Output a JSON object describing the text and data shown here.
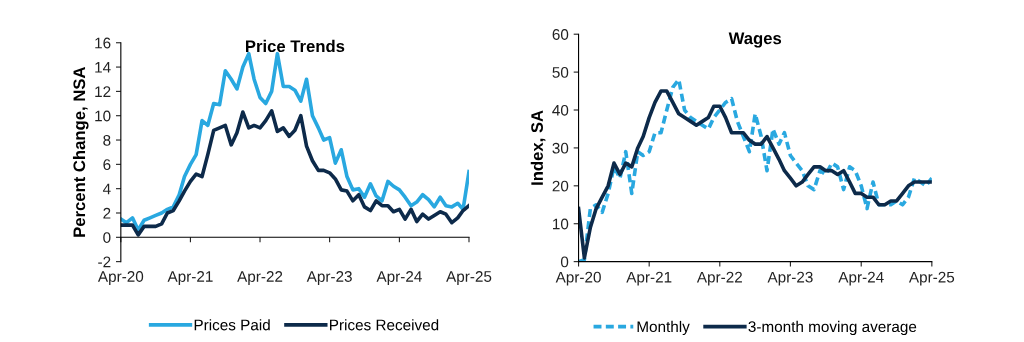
{
  "chart_data": [
    {
      "type": "line",
      "title": "Price Trends",
      "ylabel": "Percent Change, NSA",
      "x": [
        "2020-04",
        "2020-05",
        "2020-06",
        "2020-07",
        "2020-08",
        "2020-09",
        "2020-10",
        "2020-11",
        "2020-12",
        "2021-01",
        "2021-02",
        "2021-03",
        "2021-04",
        "2021-05",
        "2021-06",
        "2021-07",
        "2021-08",
        "2021-09",
        "2021-10",
        "2021-11",
        "2021-12",
        "2022-01",
        "2022-02",
        "2022-03",
        "2022-04",
        "2022-05",
        "2022-06",
        "2022-07",
        "2022-08",
        "2022-09",
        "2022-10",
        "2022-11",
        "2022-12",
        "2023-01",
        "2023-02",
        "2023-03",
        "2023-04",
        "2023-05",
        "2023-06",
        "2023-07",
        "2023-08",
        "2023-09",
        "2023-10",
        "2023-11",
        "2023-12",
        "2024-01",
        "2024-02",
        "2024-03",
        "2024-04",
        "2024-05",
        "2024-06",
        "2024-07",
        "2024-08",
        "2024-09",
        "2024-10",
        "2024-11",
        "2024-12",
        "2025-01",
        "2025-02",
        "2025-03",
        "2025-04"
      ],
      "xlim": [
        "2020-04",
        "2025-04"
      ],
      "xticks": [
        {
          "value": "2020-04",
          "label": "Apr-20"
        },
        {
          "value": "2021-04",
          "label": "Apr-21"
        },
        {
          "value": "2022-04",
          "label": "Apr-22"
        },
        {
          "value": "2023-04",
          "label": "Apr-23"
        },
        {
          "value": "2024-04",
          "label": "Apr-24"
        },
        {
          "value": "2025-04",
          "label": "Apr-25"
        }
      ],
      "ylim": [
        -2,
        16
      ],
      "yticks": [
        -2,
        0,
        2,
        4,
        6,
        8,
        10,
        12,
        14,
        16
      ],
      "grid": false,
      "legend": "bottom",
      "series": [
        {
          "name": "Prices Paid",
          "color": "#29a8e0",
          "line_style": "solid",
          "values": [
            1.5,
            1.2,
            1.6,
            0.6,
            1.4,
            1.6,
            1.8,
            2.0,
            2.3,
            2.5,
            3.5,
            5.0,
            6.0,
            6.8,
            9.6,
            9.2,
            11.0,
            10.9,
            13.7,
            13.0,
            12.2,
            14.0,
            15.1,
            13.0,
            11.5,
            11.0,
            12.0,
            15.1,
            12.4,
            12.4,
            12.1,
            11.2,
            13.0,
            10.0,
            9.0,
            8.0,
            8.2,
            6.1,
            7.2,
            5.0,
            3.9,
            4.0,
            3.3,
            4.4,
            3.4,
            3.0,
            4.6,
            4.2,
            3.9,
            3.3,
            2.6,
            2.9,
            3.5,
            3.1,
            2.5,
            3.3,
            2.6,
            2.5,
            2.8,
            2.3,
            5.4
          ]
        },
        {
          "name": "Prices Received",
          "color": "#0d2a4a",
          "line_style": "solid",
          "values": [
            1.0,
            1.0,
            1.0,
            0.2,
            0.9,
            0.9,
            0.9,
            1.1,
            2.0,
            2.2,
            3.0,
            3.8,
            4.6,
            5.2,
            5.0,
            6.8,
            8.8,
            9.0,
            9.2,
            7.6,
            8.6,
            10.3,
            9.0,
            9.2,
            9.0,
            9.6,
            10.4,
            8.7,
            9.0,
            8.3,
            8.8,
            10.0,
            7.5,
            6.3,
            5.5,
            5.5,
            5.3,
            4.8,
            3.9,
            3.8,
            3.0,
            3.5,
            2.5,
            2.2,
            3.0,
            2.6,
            2.6,
            2.1,
            2.3,
            1.5,
            2.3,
            1.3,
            1.9,
            1.5,
            1.8,
            2.1,
            1.9,
            1.2,
            1.6,
            2.2,
            2.6
          ]
        }
      ]
    },
    {
      "type": "line",
      "title": "Wages",
      "ylabel": "Index, SA",
      "x": [
        "2020-04",
        "2020-05",
        "2020-06",
        "2020-07",
        "2020-08",
        "2020-09",
        "2020-10",
        "2020-11",
        "2020-12",
        "2021-01",
        "2021-02",
        "2021-03",
        "2021-04",
        "2021-05",
        "2021-06",
        "2021-07",
        "2021-08",
        "2021-09",
        "2021-10",
        "2021-11",
        "2021-12",
        "2022-01",
        "2022-02",
        "2022-03",
        "2022-04",
        "2022-05",
        "2022-06",
        "2022-07",
        "2022-08",
        "2022-09",
        "2022-10",
        "2022-11",
        "2022-12",
        "2023-01",
        "2023-02",
        "2023-03",
        "2023-04",
        "2023-05",
        "2023-06",
        "2023-07",
        "2023-08",
        "2023-09",
        "2023-10",
        "2023-11",
        "2023-12",
        "2024-01",
        "2024-02",
        "2024-03",
        "2024-04",
        "2024-05",
        "2024-06",
        "2024-07",
        "2024-08",
        "2024-09",
        "2024-10",
        "2024-11",
        "2024-12",
        "2025-01",
        "2025-02",
        "2025-03",
        "2025-04"
      ],
      "xlim": [
        "2020-04",
        "2025-04"
      ],
      "xticks": [
        {
          "value": "2020-04",
          "label": "Apr-20"
        },
        {
          "value": "2021-04",
          "label": "Apr-21"
        },
        {
          "value": "2022-04",
          "label": "Apr-22"
        },
        {
          "value": "2023-04",
          "label": "Apr-23"
        },
        {
          "value": "2024-04",
          "label": "Apr-24"
        },
        {
          "value": "2025-04",
          "label": "Apr-25"
        }
      ],
      "ylim": [
        0,
        60
      ],
      "yticks": [
        0,
        10,
        20,
        30,
        40,
        50,
        60
      ],
      "grid": false,
      "legend": "bottom",
      "series": [
        {
          "name": "Monthly",
          "color": "#29a8e0",
          "line_style": "dashed",
          "values": [
            0,
            0.5,
            14,
            15,
            13,
            18,
            25,
            22,
            29,
            18,
            29,
            28,
            29,
            34,
            34,
            40,
            46,
            48,
            40,
            38,
            37,
            36,
            35,
            38,
            40,
            42,
            43,
            37,
            33,
            29,
            39,
            33,
            24,
            35,
            31,
            34,
            28,
            26,
            24,
            20,
            19,
            24,
            23,
            26,
            25,
            19,
            25,
            24,
            20,
            14,
            21,
            15,
            15,
            15,
            16,
            15,
            17,
            22,
            21,
            20,
            22
          ]
        },
        {
          "name": "3-month moving average",
          "color": "#0d2a4a",
          "line_style": "solid",
          "values": [
            14,
            1,
            9,
            14,
            17,
            20,
            26,
            23,
            26,
            25,
            30,
            33,
            38,
            42,
            45,
            45,
            42,
            39,
            38,
            37,
            36,
            37,
            38,
            41,
            41,
            38,
            34,
            34,
            34,
            32,
            31,
            31,
            33,
            30,
            27,
            24,
            22,
            20,
            21,
            23,
            25,
            25,
            24,
            24,
            23,
            24,
            21,
            18,
            18,
            17,
            17,
            15,
            15,
            16,
            16,
            18,
            20,
            21,
            21,
            21,
            21
          ]
        }
      ]
    }
  ]
}
